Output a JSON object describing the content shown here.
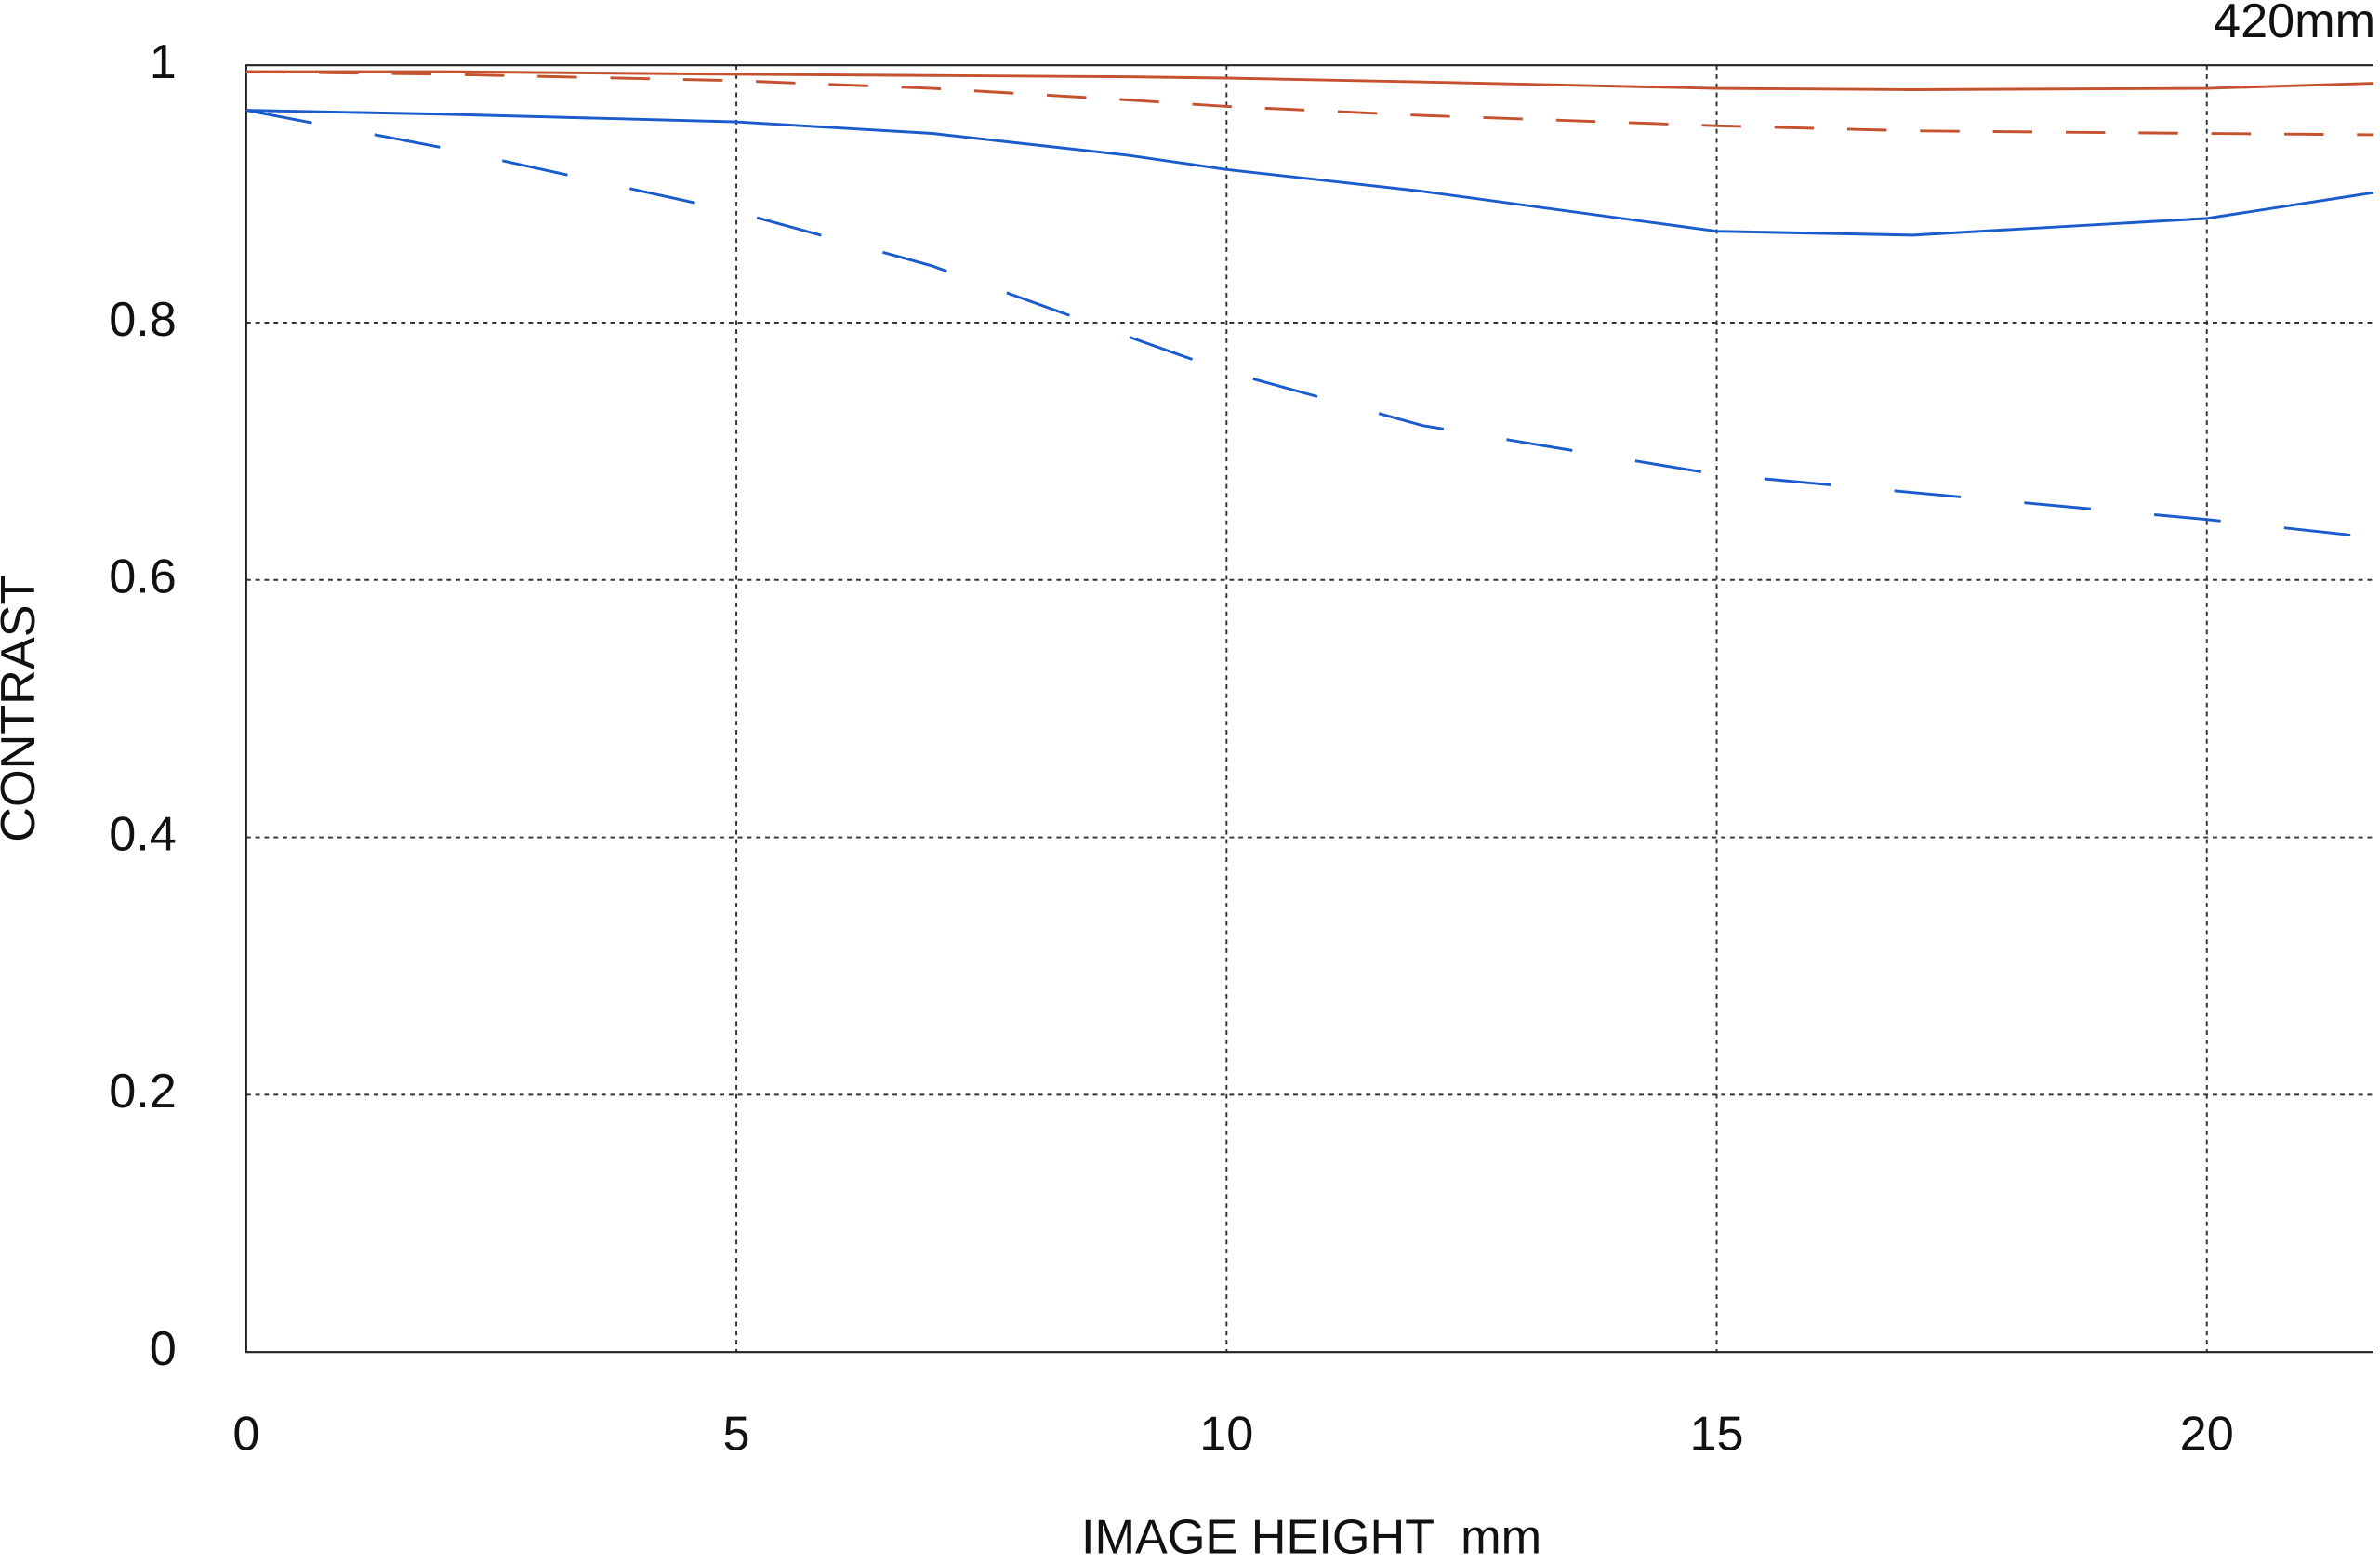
{
  "chart_data": {
    "type": "line",
    "annotation": "420mm",
    "xlabel": "IMAGE HEIGHT  mm",
    "ylabel": "CONTRAST",
    "x": [
      0,
      2,
      5,
      7,
      9,
      10,
      12,
      15,
      17,
      20,
      21.7
    ],
    "series": [
      {
        "color": "#c4522f",
        "style": "solid",
        "values": [
          0.995,
          0.995,
          0.993,
          0.992,
          0.991,
          0.99,
          0.987,
          0.982,
          0.981,
          0.982,
          0.986
        ]
      },
      {
        "color": "#c4522f",
        "style": "dashed",
        "values": [
          0.995,
          0.993,
          0.988,
          0.982,
          0.973,
          0.968,
          0.961,
          0.953,
          0.949,
          0.947,
          0.946
        ]
      },
      {
        "color": "#1a5ccc",
        "style": "solid",
        "values": [
          0.965,
          0.962,
          0.956,
          0.947,
          0.93,
          0.919,
          0.902,
          0.871,
          0.868,
          0.881,
          0.901
        ]
      },
      {
        "color": "#1a5ccc",
        "style": "dashed",
        "values": [
          0.965,
          0.936,
          0.886,
          0.844,
          0.789,
          0.762,
          0.72,
          0.682,
          0.668,
          0.647,
          0.633
        ]
      }
    ],
    "xlim": [
      0,
      21.7
    ],
    "ylim": [
      0,
      1
    ],
    "xticks": [
      0,
      5,
      10,
      15,
      20
    ],
    "yticks": [
      0,
      0.2,
      0.4,
      0.6,
      0.8,
      1
    ],
    "grid": true
  }
}
